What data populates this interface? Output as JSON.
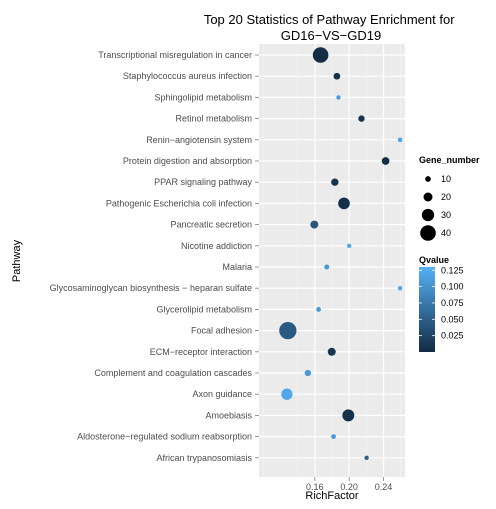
{
  "chart_data": {
    "type": "scatter",
    "title": "Top 20 Statistics of Pathway Enrichment for\nGD16−VS−GD19",
    "xlabel": "RichFactor",
    "ylabel": "Pathway",
    "xticks": [
      "0.16",
      "0.20",
      "0.24"
    ],
    "xlim": [
      0.095,
      0.265
    ],
    "grid": true,
    "points": [
      {
        "pathway": "Transcriptional misregulation in cancer",
        "rich_factor": 0.1667,
        "gene_number": 40,
        "qvalue": 0.001
      },
      {
        "pathway": "Staphylococcus aureus infection",
        "rich_factor": 0.1857,
        "gene_number": 13,
        "qvalue": 0.005
      },
      {
        "pathway": "Sphingolipid metabolism",
        "rich_factor": 0.1875,
        "gene_number": 6,
        "qvalue": 0.11
      },
      {
        "pathway": "Retinol metabolism",
        "rich_factor": 0.2143,
        "gene_number": 12,
        "qvalue": 0.008
      },
      {
        "pathway": "Renin−angiotensin system",
        "rich_factor": 0.2593,
        "gene_number": 7,
        "qvalue": 0.12
      },
      {
        "pathway": "Protein digestion and absorption",
        "rich_factor": 0.2424,
        "gene_number": 16,
        "qvalue": 0.004
      },
      {
        "pathway": "PPAR signaling pathway",
        "rich_factor": 0.1833,
        "gene_number": 15,
        "qvalue": 0.008
      },
      {
        "pathway": "Pathogenic Escherichia coli infection",
        "rich_factor": 0.194,
        "gene_number": 28,
        "qvalue": 0.004
      },
      {
        "pathway": "Pancreatic secretion",
        "rich_factor": 0.1594,
        "gene_number": 17,
        "qvalue": 0.04
      },
      {
        "pathway": "Nicotine addiction",
        "rich_factor": 0.2,
        "gene_number": 6,
        "qvalue": 0.118
      },
      {
        "pathway": "Malaria",
        "rich_factor": 0.1739,
        "gene_number": 8,
        "qvalue": 0.105
      },
      {
        "pathway": "Glycosaminoglycan biosynthesis − heparan sulfate",
        "rich_factor": 0.2593,
        "gene_number": 6,
        "qvalue": 0.12
      },
      {
        "pathway": "Glycerolipid metabolism",
        "rich_factor": 0.1644,
        "gene_number": 7,
        "qvalue": 0.105
      },
      {
        "pathway": "Focal adhesion",
        "rich_factor": 0.1286,
        "gene_number": 45,
        "qvalue": 0.045
      },
      {
        "pathway": "ECM−receptor interaction",
        "rich_factor": 0.1797,
        "gene_number": 17,
        "qvalue": 0.01
      },
      {
        "pathway": "Complement and coagulation cascades",
        "rich_factor": 0.1519,
        "gene_number": 12,
        "qvalue": 0.105
      },
      {
        "pathway": "Axon guidance",
        "rich_factor": 0.1275,
        "gene_number": 27,
        "qvalue": 0.12
      },
      {
        "pathway": "Amoebiasis",
        "rich_factor": 0.199,
        "gene_number": 29,
        "qvalue": 0.006
      },
      {
        "pathway": "Aldosterone−regulated sodium reabsorption",
        "rich_factor": 0.1818,
        "gene_number": 7,
        "qvalue": 0.105
      },
      {
        "pathway": "African trypanosomiasis",
        "rich_factor": 0.2203,
        "gene_number": 6,
        "qvalue": 0.05
      }
    ],
    "size_legend": {
      "title": "Gene_number",
      "values": [
        10,
        20,
        30,
        40
      ]
    },
    "color_legend": {
      "title": "Qvalue",
      "ticks": [
        "0.125",
        "0.100",
        "0.075",
        "0.050",
        "0.025"
      ],
      "min": 0.0,
      "max": 0.13,
      "low_color": "#132b43",
      "high_color": "#56b1f7"
    },
    "legend_position": "right"
  }
}
